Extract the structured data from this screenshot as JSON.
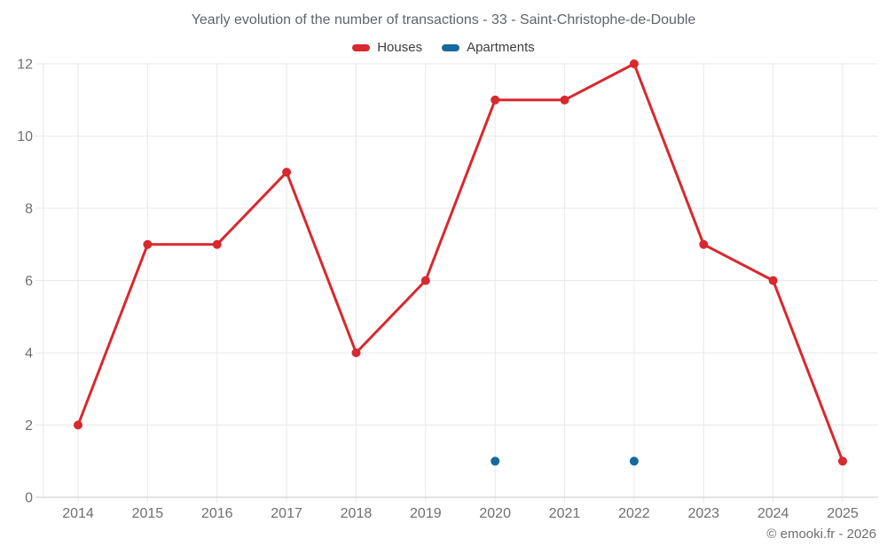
{
  "header": {
    "title": "Yearly evolution of the number of transactions - 33 - Saint-Christophe-de-Double"
  },
  "footer": {
    "copyright": "© emooki.fr - 2026"
  },
  "colors": {
    "houses": "#d9282e",
    "apartments": "#15699f",
    "gridline": "#e8e8e8",
    "axis_line": "#c9c9c9",
    "axis_label": "#6f6f6f",
    "title_text": "#60646a",
    "legend_text": "#3e3e3e"
  },
  "chart_data": {
    "type": "line",
    "title": "Yearly evolution of the number of transactions - 33 - Saint-Christophe-de-Double",
    "categories": [
      "2014",
      "2015",
      "2016",
      "2017",
      "2018",
      "2019",
      "2020",
      "2021",
      "2022",
      "2023",
      "2024",
      "2025"
    ],
    "series": [
      {
        "name": "Houses",
        "color": "#d9282e",
        "values": [
          2,
          7,
          7,
          9,
          4,
          6,
          11,
          11,
          12,
          7,
          6,
          1
        ]
      },
      {
        "name": "Apartments",
        "color": "#15699f",
        "values": [
          null,
          null,
          null,
          null,
          null,
          null,
          1,
          null,
          1,
          null,
          null,
          null
        ]
      }
    ],
    "xlabel": "",
    "ylabel": "",
    "ylim": [
      0,
      12
    ],
    "yticks": [
      0,
      2,
      4,
      6,
      8,
      10,
      12
    ],
    "grid": true,
    "legend_position": "top"
  }
}
